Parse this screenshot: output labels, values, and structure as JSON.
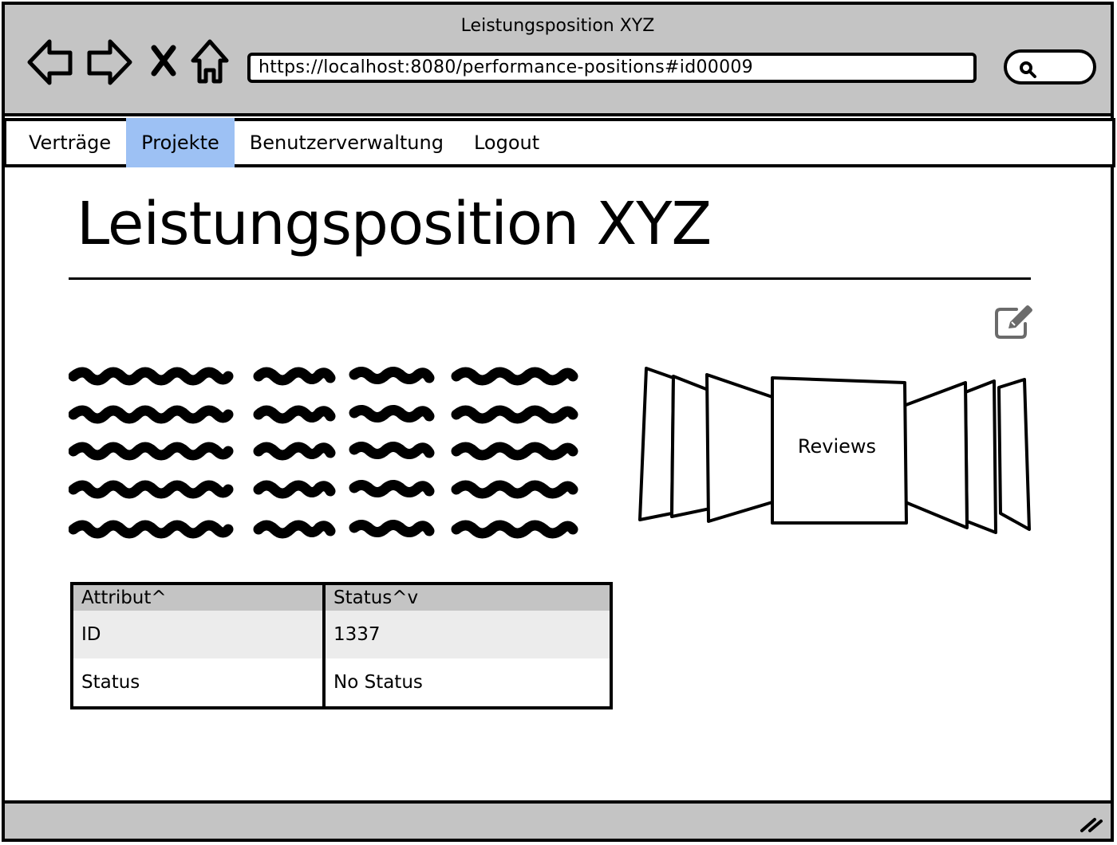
{
  "window": {
    "title": "Leistungsposition XYZ"
  },
  "browser": {
    "url": "https://localhost:8080/performance-positions#id00009",
    "icons": [
      "back-arrow-icon",
      "forward-arrow-icon",
      "stop-icon",
      "home-icon",
      "search-icon"
    ]
  },
  "menu": {
    "items": [
      {
        "label": "Verträge"
      },
      {
        "label": "Projekte"
      },
      {
        "label": "Benutzerverwaltung"
      },
      {
        "label": "Logout"
      }
    ],
    "active_index": 1
  },
  "page": {
    "heading": "Leistungsposition XYZ",
    "edit_icon": "edit-icon"
  },
  "coverflow": {
    "label": "Reviews"
  },
  "table": {
    "headers": [
      "Attribut^",
      "Status^v"
    ],
    "rows": [
      [
        "ID",
        "1337"
      ],
      [
        "Status",
        "No Status"
      ]
    ]
  },
  "colors": {
    "chrome": "#c4c4c4",
    "active_tab": "#9dc1f4",
    "row_alt": "#ececec"
  }
}
